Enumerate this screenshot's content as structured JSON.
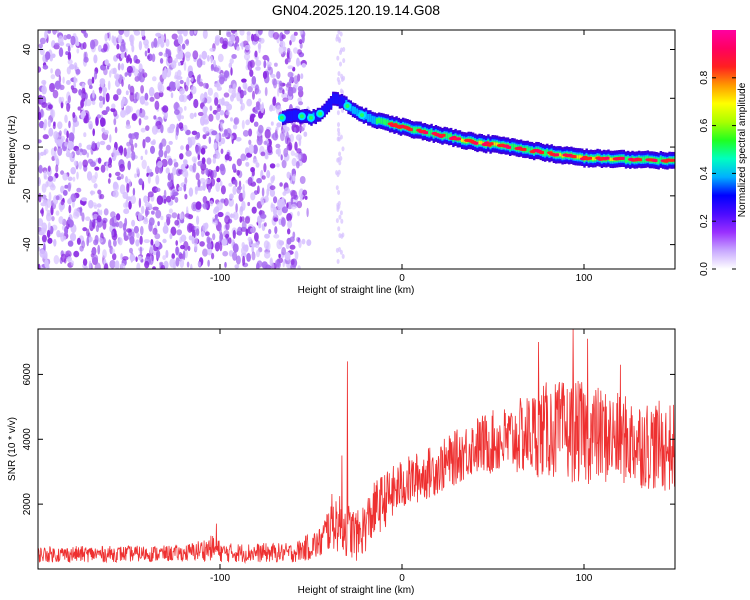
{
  "figure_title": "GN04.2025.120.19.14.G08",
  "chart_data": [
    {
      "type": "heatmap",
      "xlabel": "Height of straight line (km)",
      "ylabel": "Frequency (Hz)",
      "xlim": [
        -200,
        150
      ],
      "ylim": [
        -50,
        48
      ],
      "x_ticks": [
        {
          "value": -100,
          "label": "-100"
        },
        {
          "value": 0,
          "label": "0"
        },
        {
          "value": 100,
          "label": "100"
        }
      ],
      "y_ticks": [
        {
          "value": -40,
          "label": "-40"
        },
        {
          "value": -20,
          "label": "-20"
        },
        {
          "value": 0,
          "label": "0"
        },
        {
          "value": 20,
          "label": "20"
        },
        {
          "value": 40,
          "label": "40"
        }
      ],
      "noise_region": {
        "x": [
          -200,
          -55
        ],
        "y": [
          -50,
          48
        ],
        "amplitude": 0.15
      },
      "noise_strip": {
        "x": [
          -36,
          -32
        ],
        "y": [
          -50,
          48
        ],
        "amplitude": 0.05
      },
      "ridge": [
        {
          "x": -66,
          "freq": 12,
          "amp": 0.45
        },
        {
          "x": -58,
          "freq": 13,
          "amp": 0.35
        },
        {
          "x": -50,
          "freq": 12,
          "amp": 0.5
        },
        {
          "x": -44,
          "freq": 14,
          "amp": 0.35
        },
        {
          "x": -38,
          "freq": 20,
          "amp": 0.4
        },
        {
          "x": -32,
          "freq": 18,
          "amp": 0.45
        },
        {
          "x": -25,
          "freq": 14,
          "amp": 0.55
        },
        {
          "x": -15,
          "freq": 11,
          "amp": 0.65
        },
        {
          "x": -5,
          "freq": 9,
          "amp": 0.8
        },
        {
          "x": 5,
          "freq": 7.5,
          "amp": 0.85
        },
        {
          "x": 20,
          "freq": 5,
          "amp": 0.8
        },
        {
          "x": 40,
          "freq": 2,
          "amp": 0.9
        },
        {
          "x": 60,
          "freq": 0,
          "amp": 0.85
        },
        {
          "x": 80,
          "freq": -2.5,
          "amp": 0.85
        },
        {
          "x": 100,
          "freq": -4.5,
          "amp": 0.9
        },
        {
          "x": 120,
          "freq": -5,
          "amp": 0.85
        },
        {
          "x": 150,
          "freq": -5.5,
          "amp": 0.8
        }
      ],
      "colorbar": {
        "label": "Normalized spectral amplitude",
        "range": [
          0,
          1
        ],
        "ticks": [
          {
            "value": 0.0,
            "label": "0.0"
          },
          {
            "value": 0.2,
            "label": "0.2"
          },
          {
            "value": 0.4,
            "label": "0.4"
          },
          {
            "value": 0.6,
            "label": "0.6"
          },
          {
            "value": 0.8,
            "label": "0.8"
          }
        ],
        "colors": [
          "#ffffff",
          "#c8a8ff",
          "#9a30ff",
          "#4b0bff",
          "#0000ff",
          "#00b0ff",
          "#00ffc0",
          "#20ff20",
          "#aaff00",
          "#ffff00",
          "#ff9900",
          "#ff2020",
          "#ff0060",
          "#ff00a0"
        ]
      }
    },
    {
      "type": "line",
      "xlabel": "Height of straight line (km)",
      "ylabel": "SNR (10 * v/v)",
      "xlim": [
        -200,
        150
      ],
      "ylim": [
        0,
        7400
      ],
      "x_ticks": [
        {
          "value": -100,
          "label": "-100"
        },
        {
          "value": 0,
          "label": "0"
        },
        {
          "value": 100,
          "label": "100"
        }
      ],
      "y_ticks": [
        {
          "value": 2000,
          "label": "2000"
        },
        {
          "value": 4000,
          "label": "4000"
        },
        {
          "value": 6000,
          "label": "6000"
        }
      ],
      "color": "#ee3030",
      "envelope": [
        {
          "x": -200,
          "mean": 450,
          "spread": 250
        },
        {
          "x": -120,
          "mean": 480,
          "spread": 250
        },
        {
          "x": -104,
          "mean": 650,
          "spread": 400
        },
        {
          "x": -98,
          "mean": 500,
          "spread": 300
        },
        {
          "x": -60,
          "mean": 500,
          "spread": 300
        },
        {
          "x": -45,
          "mean": 800,
          "spread": 500
        },
        {
          "x": -38,
          "mean": 1500,
          "spread": 900
        },
        {
          "x": -32,
          "mean": 1300,
          "spread": 900
        },
        {
          "x": -24,
          "mean": 1000,
          "spread": 800
        },
        {
          "x": -14,
          "mean": 1900,
          "spread": 900
        },
        {
          "x": 0,
          "mean": 2600,
          "spread": 800
        },
        {
          "x": 20,
          "mean": 3100,
          "spread": 800
        },
        {
          "x": 40,
          "mean": 3800,
          "spread": 900
        },
        {
          "x": 60,
          "mean": 4000,
          "spread": 1100
        },
        {
          "x": 80,
          "mean": 4300,
          "spread": 1500
        },
        {
          "x": 100,
          "mean": 4200,
          "spread": 1600
        },
        {
          "x": 120,
          "mean": 4000,
          "spread": 1400
        },
        {
          "x": 150,
          "mean": 3700,
          "spread": 1400
        }
      ],
      "peaks": [
        {
          "x": -102,
          "y": 1400
        },
        {
          "x": -30,
          "y": 6400
        },
        {
          "x": -33,
          "y": 3500
        },
        {
          "x": 75,
          "y": 7000
        },
        {
          "x": 94,
          "y": 7400
        },
        {
          "x": 102,
          "y": 7100
        },
        {
          "x": 120,
          "y": 6300
        }
      ]
    }
  ]
}
